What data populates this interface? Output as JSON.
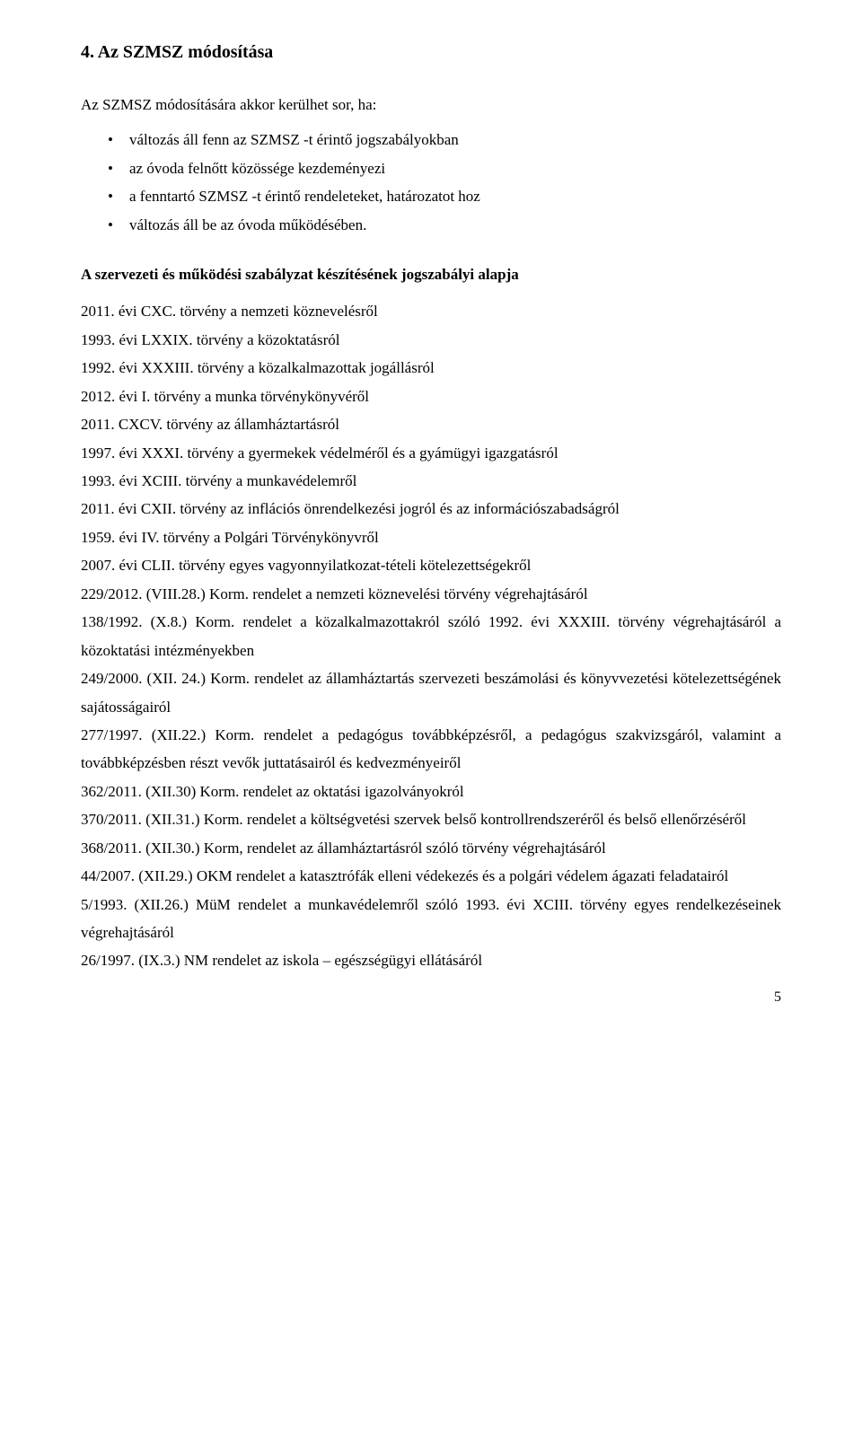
{
  "heading": "4.   Az SZMSZ módosítása",
  "intro": "Az SZMSZ módosítására akkor kerülhet sor, ha:",
  "bullets": [
    "változás áll fenn az SZMSZ -t érintő jogszabályokban",
    "az óvoda felnőtt közössége kezdeményezi",
    "a fenntartó SZMSZ -t érintő rendeleteket, határozatot hoz",
    "változás áll be az óvoda működésében."
  ],
  "subheading": "A szervezeti és működési szabályzat készítésének jogszabályi alapja",
  "laws": [
    "2011. évi CXC. törvény a nemzeti köznevelésről",
    "1993. évi LXXIX. törvény a közoktatásról",
    "1992. évi XXXIII. törvény a közalkalmazottak jogállásról",
    "2012. évi I. törvény a munka törvénykönyvéről",
    "2011. CXCV. törvény az államháztartásról",
    "1997. évi XXXI. törvény a gyermekek védelméről és a gyámügyi igazgatásról",
    "1993. évi XCIII. törvény a munkavédelemről",
    "2011. évi CXII. törvény az inflációs önrendelkezési jogról és az információszabadságról",
    "1959. évi IV. törvény a Polgári Törvénykönyvről",
    "2007. évi CLII. törvény egyes vagyonnyilatkozat-tételi kötelezettségekről",
    "229/2012. (VIII.28.) Korm. rendelet a nemzeti köznevelési törvény végrehajtásáról",
    "138/1992. (X.8.) Korm. rendelet a közalkalmazottakról szóló 1992. évi XXXIII. törvény végrehajtásáról a közoktatási intézményekben",
    "249/2000. (XII. 24.) Korm. rendelet az államháztartás szervezeti beszámolási és könyvvezetési kötelezettségének sajátosságairól",
    "277/1997. (XII.22.) Korm. rendelet a pedagógus továbbképzésről, a pedagógus szakvizsgáról, valamint a továbbképzésben részt vevők juttatásairól és kedvezményeiről",
    "362/2011. (XII.30) Korm. rendelet az oktatási igazolványokról",
    "370/2011. (XII.31.) Korm. rendelet a költségvetési szervek belső kontrollrendszeréről és belső ellenőrzéséről",
    "368/2011. (XII.30.) Korm, rendelet az államháztartásról szóló törvény végrehajtásáról",
    "44/2007. (XII.29.) OKM rendelet a katasztrófák elleni védekezés és a polgári védelem ágazati feladatairól",
    "5/1993. (XII.26.) MüM rendelet a munkavédelemről szóló 1993. évi XCIII. törvény egyes rendelkezéseinek végrehajtásáról",
    "26/1997. (IX.3.) NM rendelet az iskola – egészségügyi ellátásáról"
  ],
  "pageNumber": "5"
}
